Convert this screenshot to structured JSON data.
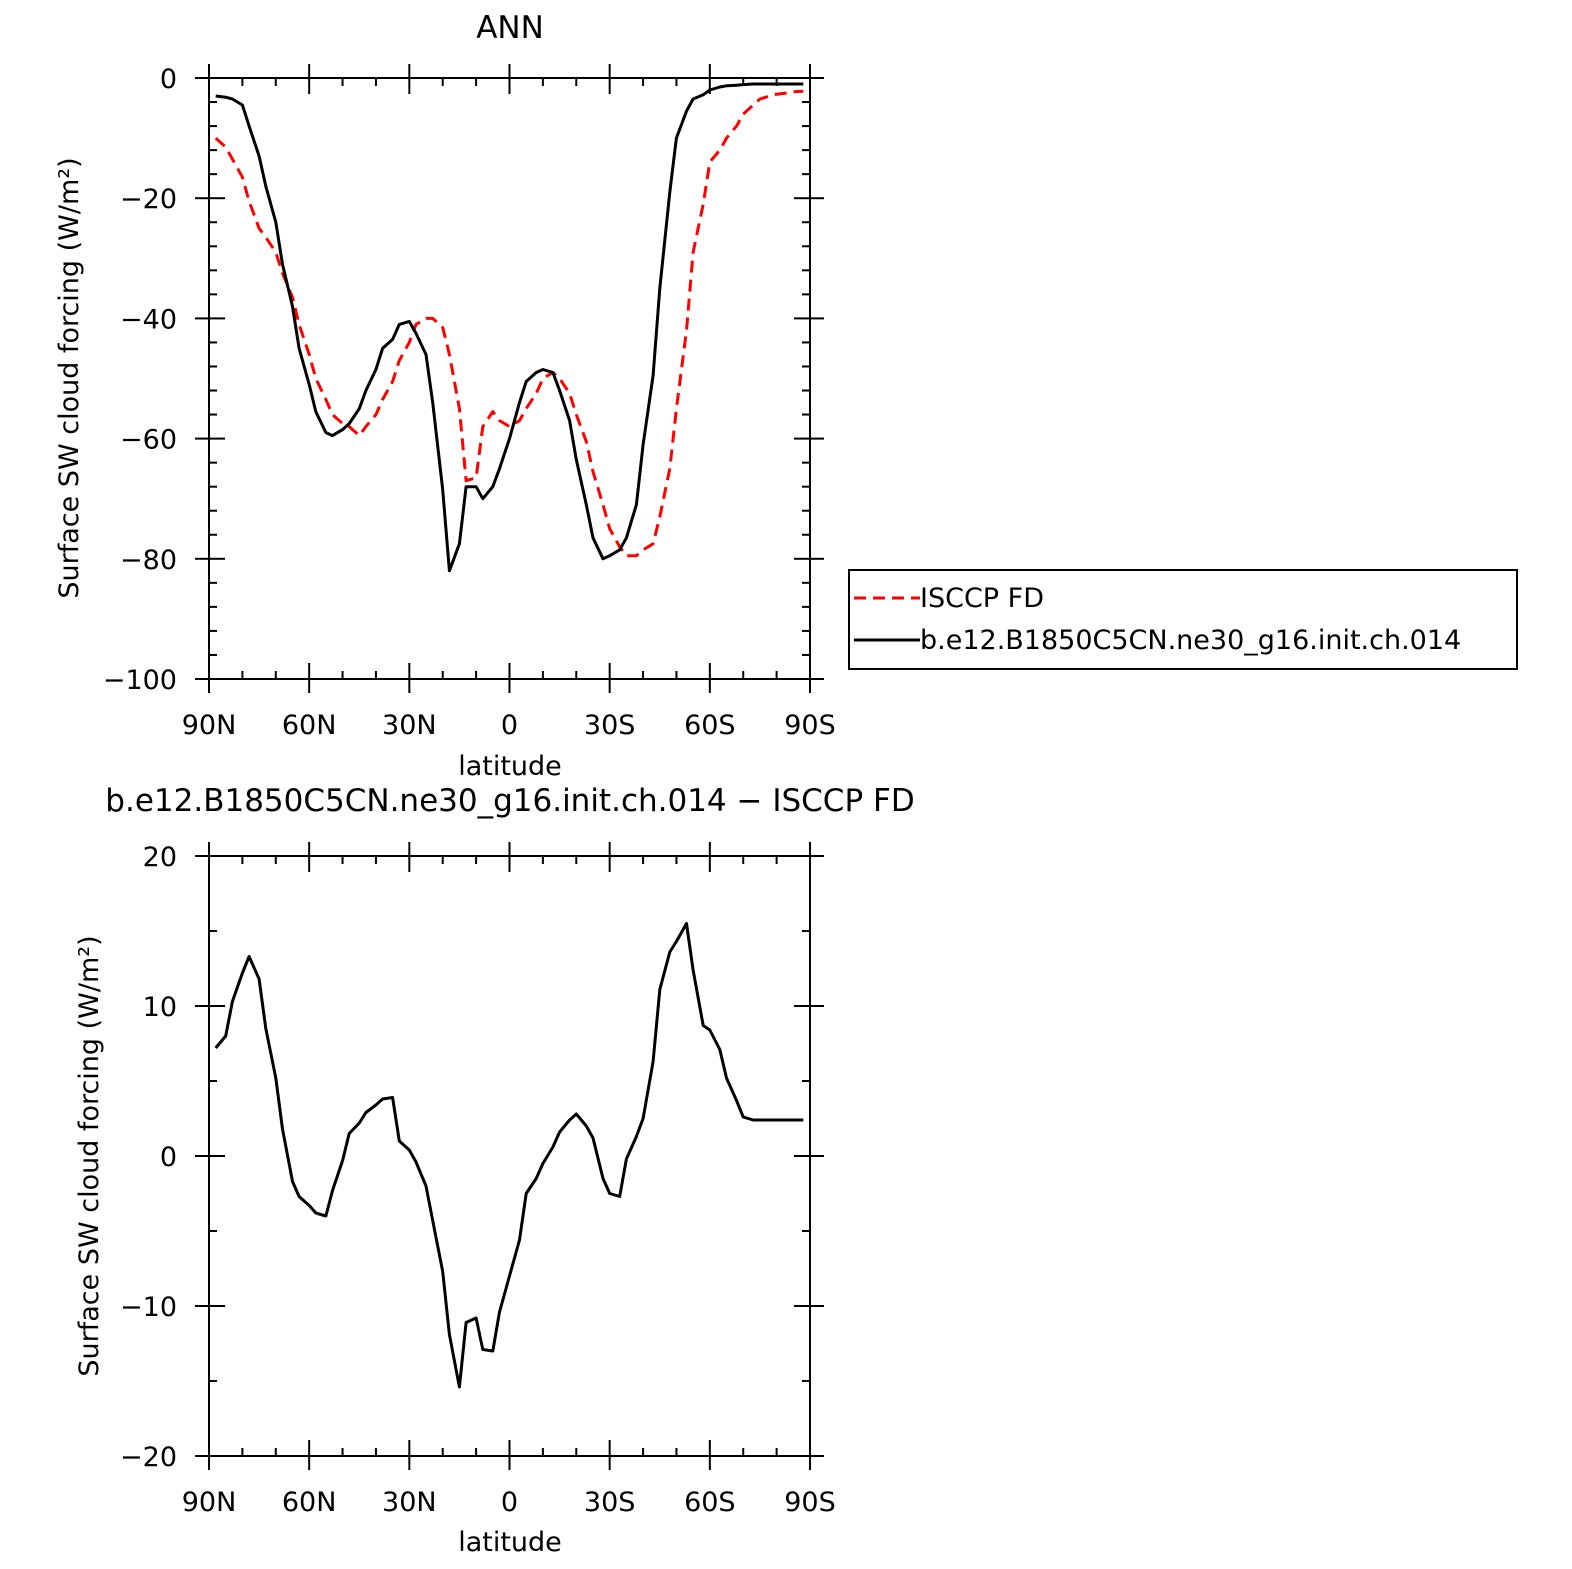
{
  "chart_data": [
    {
      "type": "line",
      "title": "ANN",
      "xlabel": "latitude",
      "ylabel": "Surface SW cloud forcing (W/m²)",
      "xlim": [
        90,
        -90
      ],
      "ylim": [
        -100,
        0
      ],
      "x_ticks": [
        90,
        60,
        30,
        0,
        -30,
        -60,
        -90
      ],
      "x_tick_labels": [
        "90N",
        "60N",
        "30N",
        "0",
        "30S",
        "60S",
        "90S"
      ],
      "y_ticks": [
        0,
        -20,
        -40,
        -60,
        -80,
        -100
      ],
      "y_tick_labels": [
        "0",
        "−20",
        "−40",
        "−60",
        "−80",
        "−100"
      ],
      "legend_position": "right",
      "series": [
        {
          "name": "ISCCP FD",
          "color": "#ff0000",
          "dash": "dashed",
          "x": [
            88,
            85,
            83,
            80,
            78,
            75,
            73,
            70,
            68,
            65,
            63,
            60,
            58,
            55,
            53,
            50,
            48,
            45,
            43,
            40,
            38,
            35,
            33,
            30,
            28,
            25,
            23,
            20,
            18,
            15,
            13,
            10,
            8,
            5,
            3,
            0,
            -3,
            -5,
            -8,
            -10,
            -13,
            -15,
            -18,
            -20,
            -23,
            -25,
            -28,
            -30,
            -33,
            -35,
            -38,
            -40,
            -43,
            -45,
            -48,
            -50,
            -53,
            -55,
            -58,
            -60,
            -63,
            -65,
            -68,
            -70,
            -73,
            -75,
            -78,
            -80,
            -83,
            -85,
            -88
          ],
          "values": [
            -10,
            -11.5,
            -13.5,
            -16.5,
            -20.5,
            -25,
            -26.5,
            -29,
            -32.5,
            -36.5,
            -41,
            -46,
            -50,
            -53.5,
            -56,
            -57.5,
            -58,
            -59.5,
            -58,
            -56,
            -53.5,
            -50.5,
            -47,
            -44,
            -41,
            -40,
            -40,
            -41.5,
            -46,
            -55,
            -67,
            -66.5,
            -58,
            -55.5,
            -57,
            -58,
            -57,
            -55,
            -52.5,
            -50,
            -49,
            -50,
            -52.5,
            -56,
            -60.5,
            -65.5,
            -71,
            -75,
            -78,
            -79.5,
            -79.5,
            -78.5,
            -77.5,
            -73,
            -65,
            -55,
            -42,
            -29,
            -21,
            -14,
            -12,
            -10,
            -8,
            -6,
            -4.5,
            -3.5,
            -3,
            -2.7,
            -2.5,
            -2.3,
            -2.2
          ]
        },
        {
          "name": "b.e12.B1850C5CN.ne30_g16.init.ch.014",
          "color": "#000000",
          "dash": "solid",
          "x": [
            88,
            85,
            83,
            80,
            78,
            75,
            73,
            70,
            68,
            65,
            63,
            60,
            58,
            55,
            53,
            50,
            48,
            45,
            43,
            40,
            38,
            35,
            33,
            30,
            28,
            25,
            23,
            20,
            18,
            15,
            13,
            10,
            8,
            5,
            3,
            0,
            -3,
            -5,
            -8,
            -10,
            -13,
            -15,
            -18,
            -20,
            -23,
            -25,
            -28,
            -30,
            -33,
            -35,
            -38,
            -40,
            -43,
            -45,
            -48,
            -50,
            -53,
            -55,
            -58,
            -60,
            -63,
            -65,
            -68,
            -70,
            -73,
            -75,
            -78,
            -80,
            -83,
            -85,
            -88
          ],
          "values": [
            -3,
            -3.2,
            -3.5,
            -4.5,
            -8,
            -13,
            -18,
            -24,
            -31,
            -38,
            -45,
            -51,
            -55.5,
            -59,
            -59.5,
            -58.5,
            -57.5,
            -55,
            -52,
            -48.5,
            -45,
            -43.5,
            -41,
            -40.5,
            -42.5,
            -46,
            -54,
            -68.5,
            -82,
            -77.5,
            -68,
            -68,
            -70,
            -68,
            -65,
            -60,
            -54,
            -50.5,
            -49,
            -48.5,
            -49,
            -52,
            -57,
            -63.5,
            -71,
            -76.5,
            -80,
            -79.5,
            -78.5,
            -76.5,
            -71,
            -61,
            -49.5,
            -35,
            -19,
            -10,
            -5.5,
            -3.5,
            -2.8,
            -2,
            -1.5,
            -1.3,
            -1.2,
            -1.1,
            -1,
            -1,
            -1,
            -1,
            -1,
            -1,
            -1
          ]
        }
      ]
    },
    {
      "type": "line",
      "title": "b.e12.B1850C5CN.ne30_g16.init.ch.014 − ISCCP FD",
      "xlabel": "latitude",
      "ylabel": "Surface SW cloud forcing (W/m²)",
      "xlim": [
        90,
        -90
      ],
      "ylim": [
        -20,
        20
      ],
      "x_ticks": [
        90,
        60,
        30,
        0,
        -30,
        -60,
        -90
      ],
      "x_tick_labels": [
        "90N",
        "60N",
        "30N",
        "0",
        "30S",
        "60S",
        "90S"
      ],
      "y_ticks": [
        20,
        10,
        0,
        -10,
        -20
      ],
      "y_tick_labels": [
        "20",
        "10",
        "0",
        "−10",
        "−20"
      ],
      "series": [
        {
          "color": "#000000",
          "dash": "solid",
          "x": [
            88,
            85,
            83,
            80,
            78,
            75,
            73,
            70,
            68,
            65,
            63,
            60,
            58,
            55,
            53,
            50,
            48,
            45,
            43,
            40,
            38,
            35,
            33,
            30,
            28,
            25,
            23,
            20,
            18,
            15,
            13,
            10,
            8,
            5,
            3,
            0,
            -3,
            -5,
            -8,
            -10,
            -13,
            -15,
            -18,
            -20,
            -23,
            -25,
            -28,
            -30,
            -33,
            -35,
            -38,
            -40,
            -43,
            -45,
            -48,
            -50,
            -53,
            -55,
            -58,
            -60,
            -63,
            -65,
            -68,
            -70,
            -73,
            -75,
            -78,
            -80,
            -83,
            -85,
            -88
          ],
          "values": [
            7.2,
            8,
            10.3,
            12.2,
            13.3,
            11.8,
            8.5,
            5.2,
            1.8,
            -1.7,
            -2.7,
            -3.3,
            -3.8,
            -4.0,
            -2.3,
            -0.3,
            1.5,
            2.2,
            2.9,
            3.4,
            3.8,
            3.9,
            1.0,
            0.4,
            -0.4,
            -2.0,
            -4.3,
            -7.7,
            -11.9,
            -15.4,
            -11.1,
            -10.8,
            -12.9,
            -13.0,
            -10.4,
            -8.0,
            -5.6,
            -2.5,
            -1.5,
            -0.5,
            0.6,
            1.6,
            2.4,
            2.8,
            2.0,
            1.2,
            -1.5,
            -2.5,
            -2.7,
            -0.2,
            1.3,
            2.5,
            6.3,
            11.1,
            13.6,
            14.3,
            15.5,
            12.4,
            8.7,
            8.4,
            7.1,
            5.2,
            3.7,
            2.6,
            2.4,
            2.4,
            2.4,
            2.4,
            2.4,
            2.4,
            2.4
          ]
        }
      ]
    }
  ]
}
